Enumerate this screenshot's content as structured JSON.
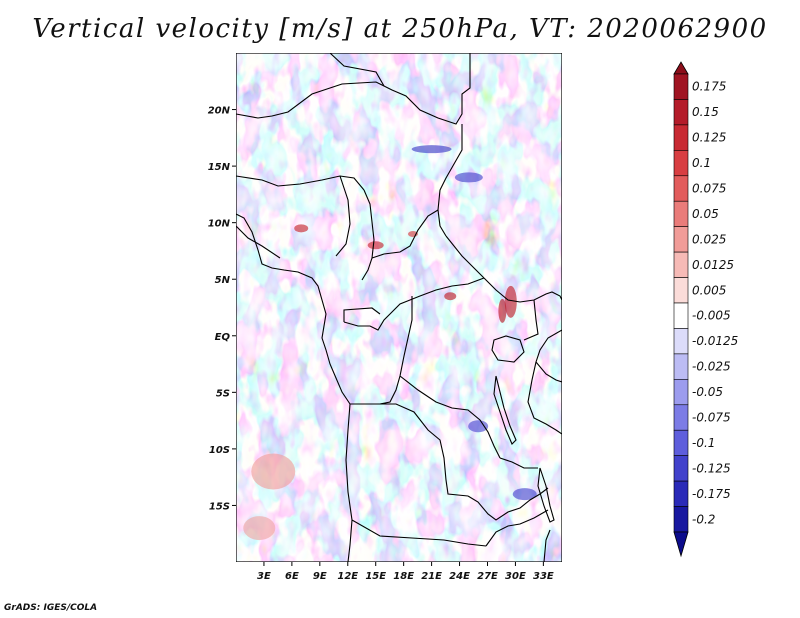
{
  "title": "Vertical velocity [m/s] at 250hPa, VT: 2020062900",
  "credit": "GrADS: IGES/COLA",
  "map": {
    "lon_range": [
      0,
      35
    ],
    "lat_range": [
      -20,
      25
    ],
    "lat_ticks": [
      {
        "value": 20,
        "label": "20N"
      },
      {
        "value": 15,
        "label": "15N"
      },
      {
        "value": 10,
        "label": "10N"
      },
      {
        "value": 5,
        "label": "5N"
      },
      {
        "value": 0,
        "label": "EQ"
      },
      {
        "value": -5,
        "label": "5S"
      },
      {
        "value": -10,
        "label": "10S"
      },
      {
        "value": -15,
        "label": "15S"
      }
    ],
    "lon_ticks": [
      {
        "value": 3,
        "label": "3E"
      },
      {
        "value": 6,
        "label": "6E"
      },
      {
        "value": 9,
        "label": "9E"
      },
      {
        "value": 12,
        "label": "12E"
      },
      {
        "value": 15,
        "label": "15E"
      },
      {
        "value": 18,
        "label": "18E"
      },
      {
        "value": 21,
        "label": "21E"
      },
      {
        "value": 24,
        "label": "24E"
      },
      {
        "value": 27,
        "label": "27E"
      },
      {
        "value": 30,
        "label": "30E"
      },
      {
        "value": 33,
        "label": "33E"
      }
    ]
  },
  "colorbar": {
    "levels": [
      {
        "label": "0.175",
        "color": "#a01422"
      },
      {
        "label": "0.15",
        "color": "#b41c2a"
      },
      {
        "label": "0.125",
        "color": "#c82a33"
      },
      {
        "label": "0.1",
        "color": "#d83e42"
      },
      {
        "label": "0.075",
        "color": "#e25c5c"
      },
      {
        "label": "0.05",
        "color": "#ea7c7a"
      },
      {
        "label": "0.025",
        "color": "#f19c98"
      },
      {
        "label": "0.0125",
        "color": "#f6bab6"
      },
      {
        "label": "0.005",
        "color": "#fbdcd9"
      },
      {
        "label": "-0.005",
        "color": "#ffffff"
      },
      {
        "label": "-0.0125",
        "color": "#dcdcfa"
      },
      {
        "label": "-0.025",
        "color": "#bcbcf4"
      },
      {
        "label": "-0.05",
        "color": "#9c9cee"
      },
      {
        "label": "-0.075",
        "color": "#7c7ce6"
      },
      {
        "label": "-0.1",
        "color": "#5e5edc"
      },
      {
        "label": "-0.125",
        "color": "#4242cc"
      },
      {
        "label": "-0.175",
        "color": "#2a2ab8"
      },
      {
        "label": "-0.2",
        "color": "#1818a0"
      }
    ],
    "top_triangle_color": "#8c0e1a",
    "bottom_triangle_color": "#0c0c8c"
  }
}
